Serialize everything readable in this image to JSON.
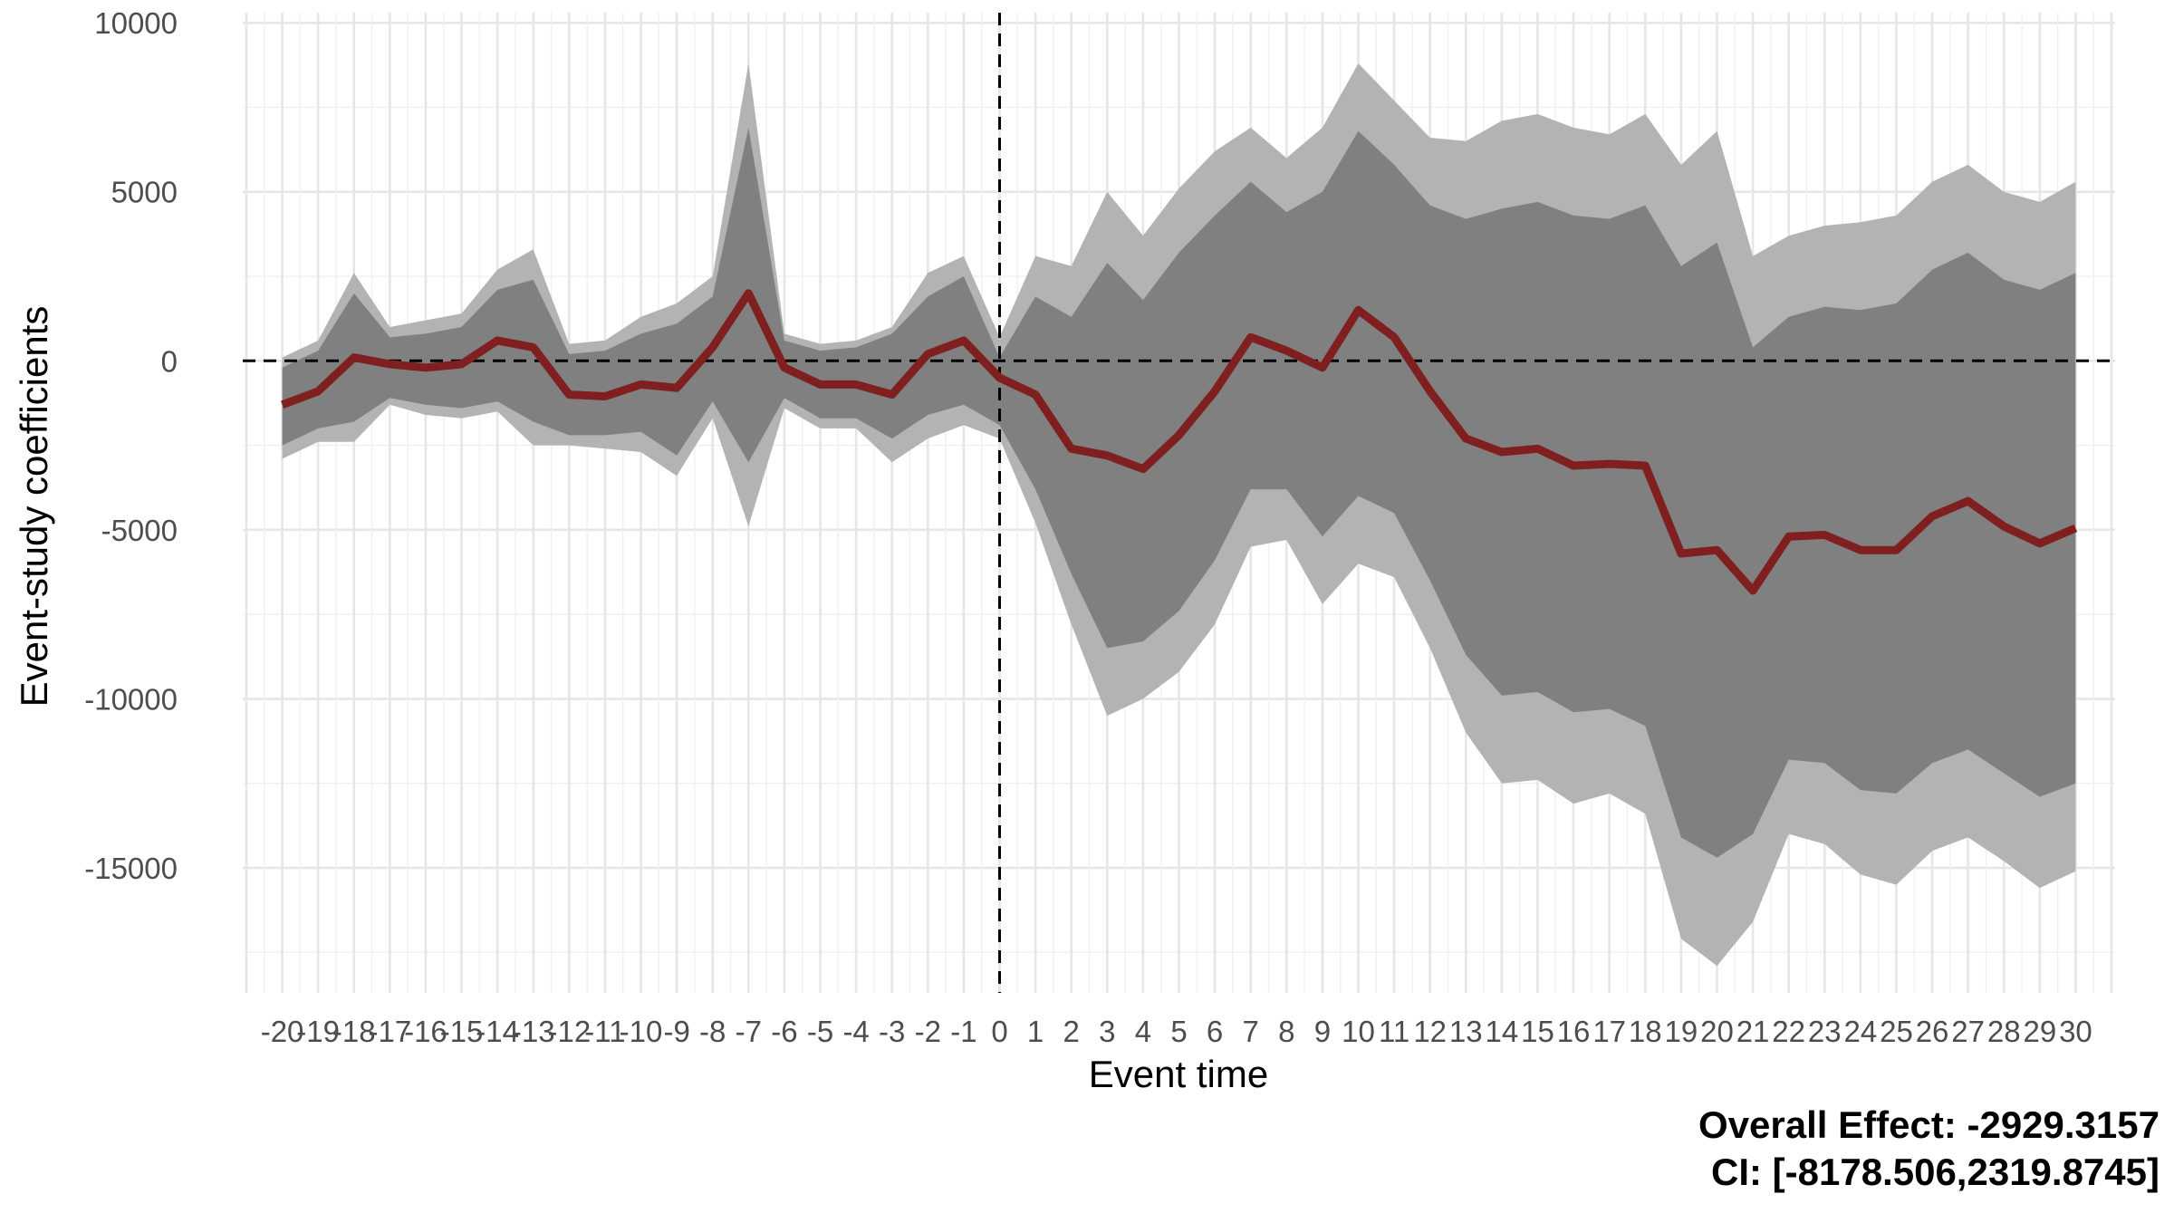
{
  "chart_data": {
    "type": "area",
    "xlabel": "Event time",
    "ylabel": "Event-study coefficients",
    "x": [
      -20,
      -19,
      -18,
      -17,
      -16,
      -15,
      -14,
      -13,
      -12,
      -11,
      -10,
      -9,
      -8,
      -7,
      -6,
      -5,
      -4,
      -3,
      -2,
      -1,
      0,
      1,
      2,
      3,
      4,
      5,
      6,
      7,
      8,
      9,
      10,
      11,
      12,
      13,
      14,
      15,
      16,
      17,
      18,
      19,
      20,
      21,
      22,
      23,
      24,
      25,
      26,
      27,
      28,
      29,
      30
    ],
    "xlim": [
      -21.1,
      31.1
    ],
    "ylim": [
      -18700,
      10300
    ],
    "y_ticks": [
      10000,
      5000,
      0,
      -5000,
      -10000,
      -15000
    ],
    "x_tick_labels": [
      "-20",
      "-19",
      "-18",
      "-17",
      "-16",
      "-15",
      "-14",
      "-13",
      "-12",
      "-11",
      "-10",
      "-9",
      "-8",
      "-7",
      "-6",
      "-5",
      "-4",
      "-3",
      "-2",
      "-1",
      "0",
      "1",
      "2",
      "3",
      "4",
      "5",
      "6",
      "7",
      "8",
      "9",
      "10",
      "11",
      "12",
      "13",
      "14",
      "15",
      "16",
      "17",
      "18",
      "19",
      "20",
      "21",
      "22",
      "23",
      "24",
      "25",
      "26",
      "27",
      "28",
      "29",
      "30"
    ],
    "grid": true,
    "reference_lines": {
      "x": 0,
      "y": 0,
      "style": "dashed"
    },
    "series": [
      {
        "role": "coefficient",
        "color": "#7f1f1f",
        "values": [
          -1300,
          -900,
          100,
          -100,
          -200,
          -100,
          600,
          400,
          -1000,
          -1050,
          -700,
          -800,
          400,
          2000,
          -200,
          -700,
          -700,
          -1000,
          200,
          600,
          -500,
          -1000,
          -2600,
          -2800,
          -3200,
          -2200,
          -900,
          700,
          300,
          -200,
          1500,
          700,
          -900,
          -2300,
          -2700,
          -2600,
          -3100,
          -3050,
          -3100,
          -5700,
          -5600,
          -6800,
          -5200,
          -5150,
          -5600,
          -5600,
          -4600,
          -4150,
          -4900,
          -5400,
          -4950
        ]
      },
      {
        "role": "inner-band",
        "color": "#808080",
        "upper": [
          -200,
          300,
          2000,
          700,
          800,
          1000,
          2100,
          2400,
          200,
          300,
          800,
          1100,
          1900,
          6900,
          600,
          300,
          400,
          800,
          1900,
          2500,
          100,
          1900,
          1300,
          2900,
          1800,
          3200,
          4300,
          5300,
          4400,
          5000,
          6800,
          5800,
          4600,
          4200,
          4500,
          4700,
          4300,
          4200,
          4600,
          2800,
          3500,
          400,
          1300,
          1600,
          1500,
          1700,
          2700,
          3200,
          2400,
          2100,
          2600
        ],
        "lower": [
          -2500,
          -2000,
          -1800,
          -1100,
          -1300,
          -1400,
          -1200,
          -1800,
          -2200,
          -2200,
          -2100,
          -2800,
          -1200,
          -3000,
          -1100,
          -1700,
          -1700,
          -2300,
          -1600,
          -1300,
          -1900,
          -3800,
          -6300,
          -8500,
          -8300,
          -7400,
          -5900,
          -3800,
          -3800,
          -5200,
          -4000,
          -4500,
          -6500,
          -8700,
          -9900,
          -9800,
          -10400,
          -10300,
          -10800,
          -14100,
          -14700,
          -14000,
          -11800,
          -11900,
          -12700,
          -12800,
          -11900,
          -11500,
          -12200,
          -12900,
          -12500
        ]
      },
      {
        "role": "outer-band",
        "color": "#b3b3b3",
        "upper": [
          100,
          600,
          2600,
          1000,
          1200,
          1400,
          2700,
          3300,
          500,
          600,
          1300,
          1700,
          2500,
          8800,
          800,
          500,
          600,
          1000,
          2600,
          3100,
          700,
          3100,
          2800,
          5000,
          3700,
          5100,
          6200,
          6900,
          6000,
          6900,
          8800,
          7700,
          6600,
          6500,
          7100,
          7300,
          6900,
          6700,
          7300,
          5800,
          6800,
          3100,
          3700,
          4000,
          4100,
          4300,
          5300,
          5800,
          5000,
          4700,
          5300
        ],
        "lower": [
          -2900,
          -2400,
          -2400,
          -1300,
          -1600,
          -1700,
          -1500,
          -2500,
          -2500,
          -2600,
          -2700,
          -3400,
          -1700,
          -4900,
          -1400,
          -2000,
          -2000,
          -3000,
          -2300,
          -1900,
          -2300,
          -4800,
          -7800,
          -10500,
          -10000,
          -9200,
          -7800,
          -5500,
          -5300,
          -7200,
          -6000,
          -6400,
          -8500,
          -11000,
          -12500,
          -12400,
          -13100,
          -12800,
          -13400,
          -17100,
          -17900,
          -16600,
          -14000,
          -14300,
          -15200,
          -15500,
          -14500,
          -14100,
          -14800,
          -15600,
          -15100
        ]
      }
    ]
  },
  "caption": {
    "line1": "Overall Effect: -2929.3157",
    "line2": "CI: [-8178.506,2319.8745]"
  }
}
